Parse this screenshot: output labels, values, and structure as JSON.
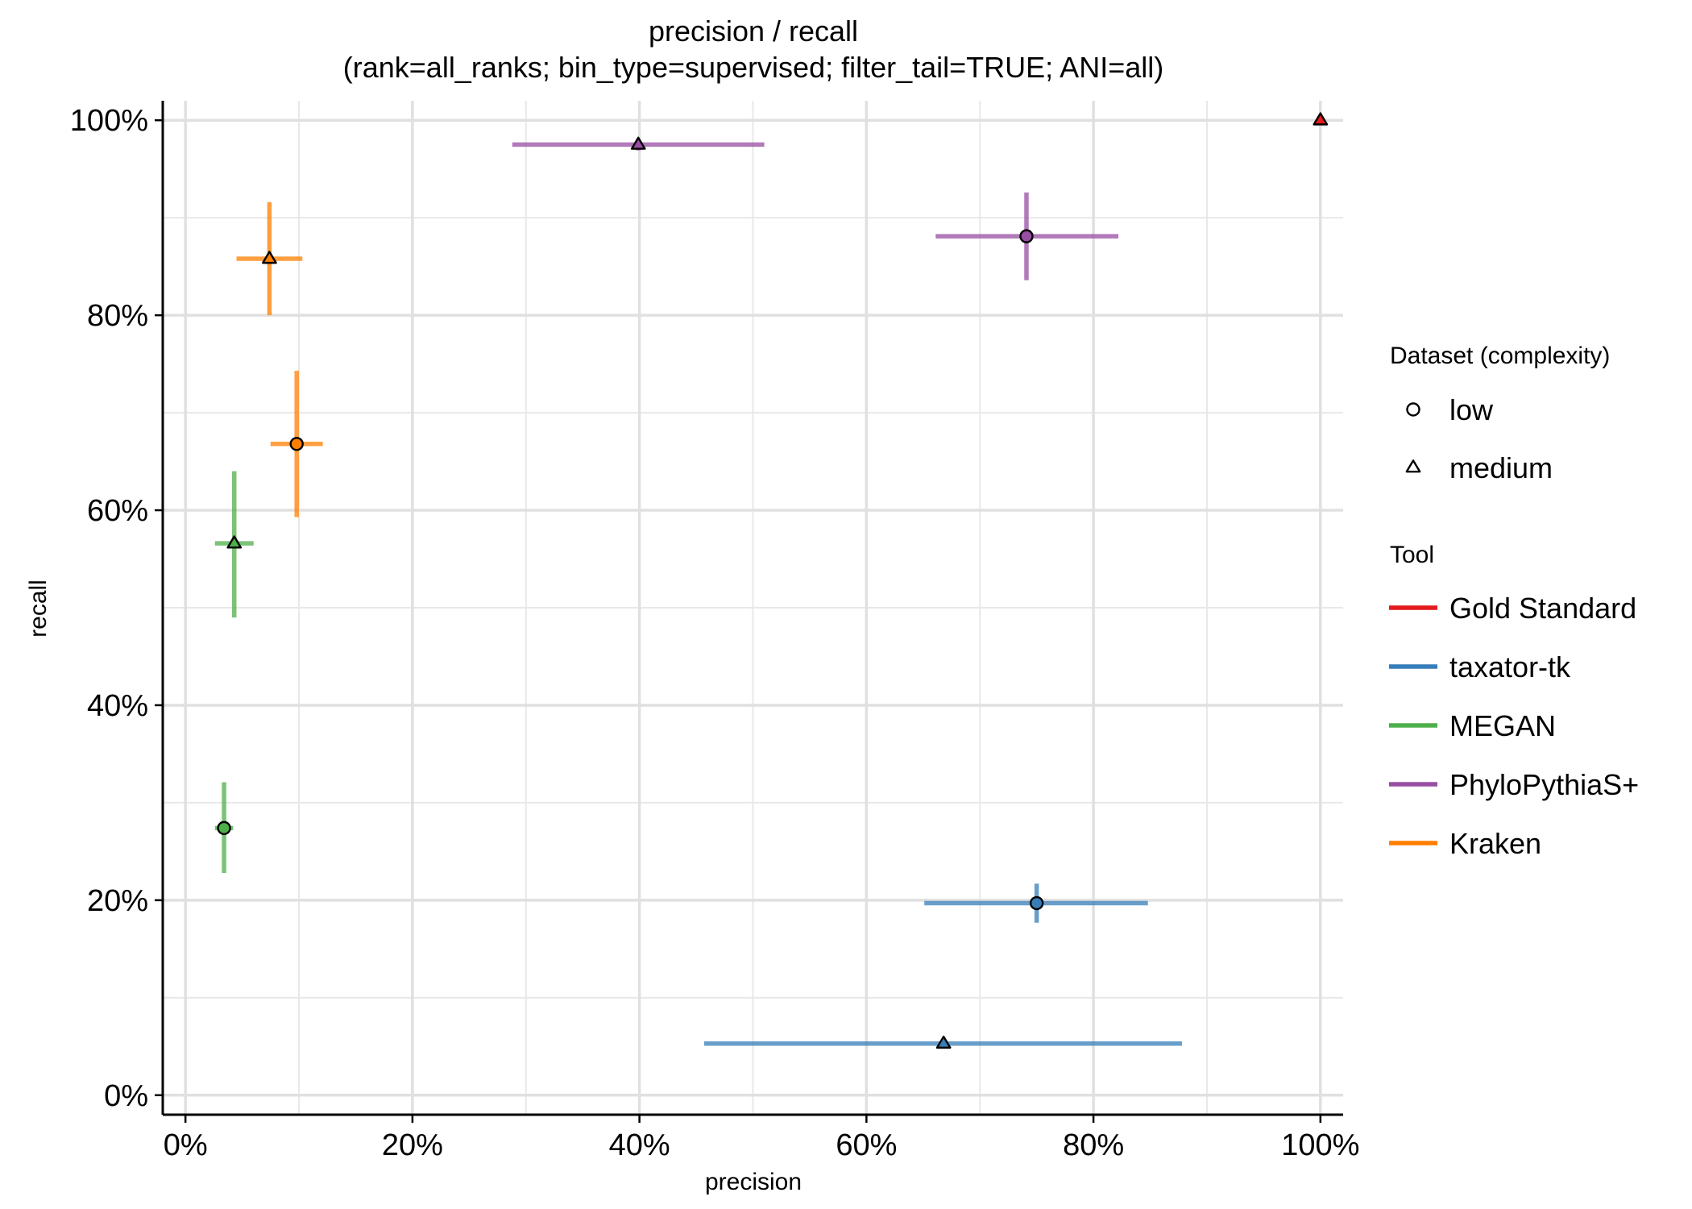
{
  "chart_data": {
    "type": "scatter",
    "title": "precision / recall",
    "subtitle": "(rank=all_ranks; bin_type=supervised; filter_tail=TRUE; ANI=all)",
    "xlabel": "precision",
    "ylabel": "recall",
    "xlim": [
      -2,
      102
    ],
    "ylim": [
      -2,
      102
    ],
    "x_ticks": [
      0,
      20,
      40,
      60,
      80,
      100
    ],
    "x_tick_labels": [
      "0%",
      "20%",
      "40%",
      "60%",
      "80%",
      "100%"
    ],
    "y_ticks": [
      0,
      20,
      40,
      60,
      80,
      100
    ],
    "y_tick_labels": [
      "0%",
      "20%",
      "40%",
      "60%",
      "80%",
      "100%"
    ],
    "minor_grid": [
      10,
      30,
      50,
      70,
      90
    ],
    "grid": true,
    "legend_position": "right",
    "shape_legend": {
      "title": "Dataset (complexity)",
      "items": [
        {
          "label": "low",
          "shape": "circle"
        },
        {
          "label": "medium",
          "shape": "triangle"
        }
      ]
    },
    "color_legend": {
      "title": "Tool",
      "items": [
        {
          "label": "Gold Standard",
          "color": "#e41a1c"
        },
        {
          "label": "taxator-tk",
          "color": "#377eb8"
        },
        {
          "label": "MEGAN",
          "color": "#4daf4a"
        },
        {
          "label": "PhyloPythiaS+",
          "color": "#984ea3"
        },
        {
          "label": "Kraken",
          "color": "#ff7f00"
        }
      ]
    },
    "series": [
      {
        "name": "Gold Standard",
        "color": "#e41a1c",
        "points": [
          {
            "dataset": "medium",
            "shape": "triangle",
            "x": 100,
            "y": 100,
            "x_lo": 100,
            "x_hi": 100,
            "y_lo": 100,
            "y_hi": 100
          }
        ]
      },
      {
        "name": "taxator-tk",
        "color": "#377eb8",
        "points": [
          {
            "dataset": "low",
            "shape": "circle",
            "x": 75,
            "y": 19.7,
            "x_lo": 65.1,
            "x_hi": 84.8,
            "y_lo": 17.7,
            "y_hi": 21.7
          },
          {
            "dataset": "medium",
            "shape": "triangle",
            "x": 66.8,
            "y": 5.3,
            "x_lo": 45.7,
            "x_hi": 87.8,
            "y_lo": 5.3,
            "y_hi": 5.3
          }
        ]
      },
      {
        "name": "MEGAN",
        "color": "#4daf4a",
        "points": [
          {
            "dataset": "low",
            "shape": "circle",
            "x": 3.4,
            "y": 27.4,
            "x_lo": 2.6,
            "x_hi": 4.2,
            "y_lo": 22.8,
            "y_hi": 32.1
          },
          {
            "dataset": "medium",
            "shape": "triangle",
            "x": 4.3,
            "y": 56.6,
            "x_lo": 2.6,
            "x_hi": 6.0,
            "y_lo": 49.0,
            "y_hi": 64.0
          }
        ]
      },
      {
        "name": "PhyloPythiaS+",
        "color": "#984ea3",
        "points": [
          {
            "dataset": "low",
            "shape": "circle",
            "x": 74.1,
            "y": 88.1,
            "x_lo": 66.1,
            "x_hi": 82.2,
            "y_lo": 83.6,
            "y_hi": 92.6
          },
          {
            "dataset": "medium",
            "shape": "triangle",
            "x": 39.9,
            "y": 97.5,
            "x_lo": 28.8,
            "x_hi": 51.0,
            "y_lo": 96.9,
            "y_hi": 98.1
          }
        ]
      },
      {
        "name": "Kraken",
        "color": "#ff7f00",
        "points": [
          {
            "dataset": "low",
            "shape": "circle",
            "x": 9.8,
            "y": 66.8,
            "x_lo": 7.5,
            "x_hi": 12.1,
            "y_lo": 59.3,
            "y_hi": 74.3
          },
          {
            "dataset": "medium",
            "shape": "triangle",
            "x": 7.4,
            "y": 85.8,
            "x_lo": 4.5,
            "x_hi": 10.3,
            "y_lo": 80.0,
            "y_hi": 91.6
          }
        ]
      }
    ]
  }
}
